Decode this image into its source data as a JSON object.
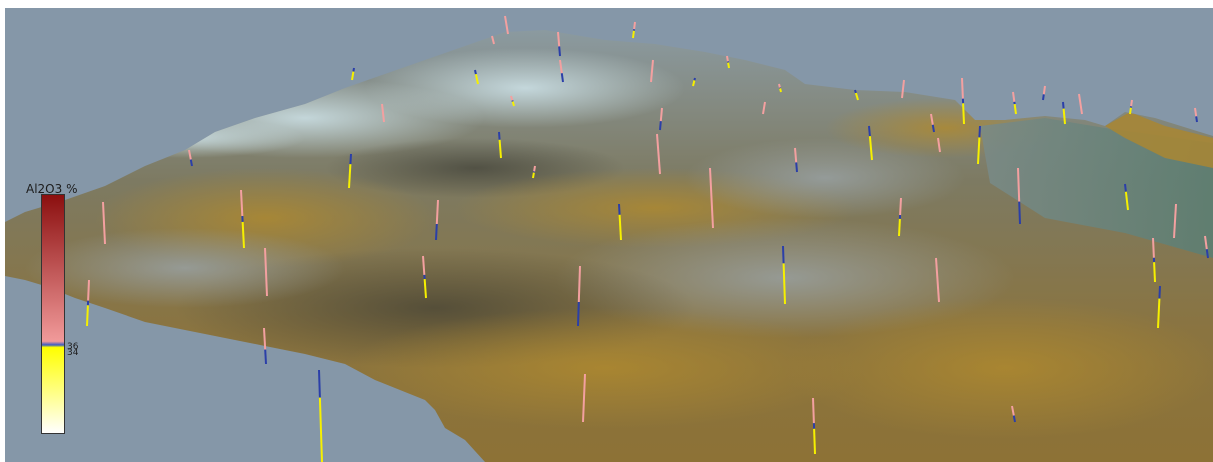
{
  "legend": {
    "title": "Al2O3 %",
    "tick_upper": "36",
    "tick_lower": "34",
    "threshold_level": 0.37,
    "colors": {
      "top": "#8b0f0f",
      "mid": "#f19a9a",
      "threshold": "#3b5bc4",
      "low_top": "#ffff00",
      "bottom": "#ffffff"
    }
  },
  "scene": {
    "background_color": "#8597a8",
    "terrain_colors": [
      "#6e7476",
      "#8a7a46",
      "#a38a3c",
      "#c2ccd2",
      "#5f8a78"
    ],
    "drillhole_colors": {
      "high": "#f3a0a0",
      "threshold": "#2b3fa8",
      "low": "#f6f000"
    }
  }
}
